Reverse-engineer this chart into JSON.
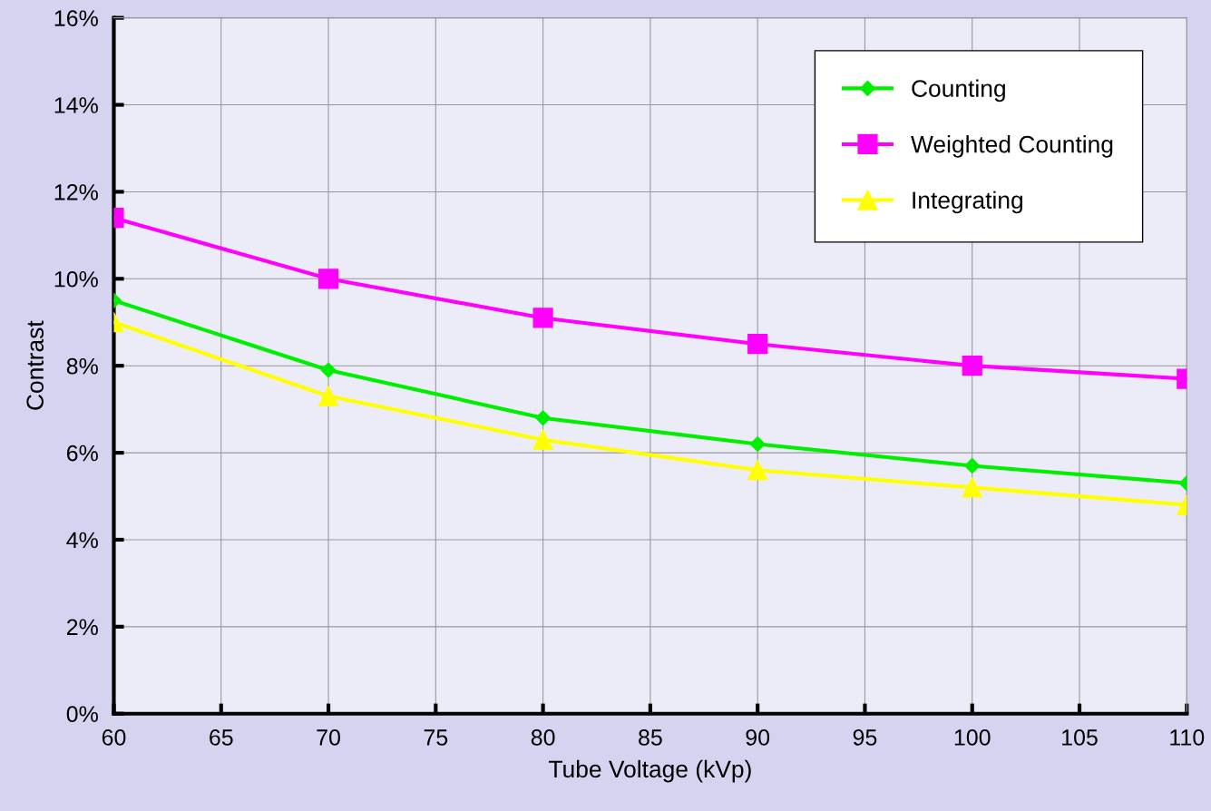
{
  "chart_data": {
    "type": "line",
    "xlabel": "Tube Voltage (kVp)",
    "ylabel": "Contrast",
    "x": [
      60,
      70,
      80,
      90,
      100,
      110
    ],
    "series": [
      {
        "name": "Counting",
        "color": "#00ee00",
        "marker": "diamond",
        "values": [
          9.5,
          7.9,
          6.8,
          6.2,
          5.7,
          5.3
        ]
      },
      {
        "name": "Weighted Counting",
        "color": "#ff00ff",
        "marker": "square",
        "values": [
          11.4,
          10.0,
          9.1,
          8.5,
          8.0,
          7.7
        ]
      },
      {
        "name": "Integrating",
        "color": "#ffff00",
        "marker": "triangle",
        "values": [
          9.0,
          7.3,
          6.3,
          5.6,
          5.2,
          4.8
        ]
      }
    ],
    "xlim": [
      60,
      110
    ],
    "xticks": [
      60,
      65,
      70,
      75,
      80,
      85,
      90,
      95,
      100,
      105,
      110
    ],
    "ylim": [
      0,
      16
    ],
    "yticks": [
      {
        "value": 0,
        "label": "0%"
      },
      {
        "value": 2,
        "label": "2%"
      },
      {
        "value": 4,
        "label": "4%"
      },
      {
        "value": 6,
        "label": "6%"
      },
      {
        "value": 8,
        "label": "8%"
      },
      {
        "value": 10,
        "label": "10%"
      },
      {
        "value": 12,
        "label": "12%"
      },
      {
        "value": 14,
        "label": "14%"
      },
      {
        "value": 16,
        "label": "16%"
      }
    ],
    "grid": true,
    "legend": "top right",
    "line_style": "solid"
  }
}
